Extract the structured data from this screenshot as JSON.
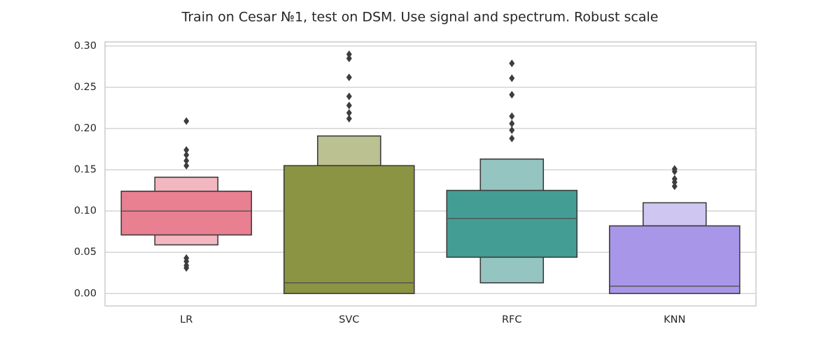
{
  "chart_data": {
    "type": "boxen",
    "title": "Train on Cesar №1, test on DSM. Use signal and spectrum. Robust scale",
    "xlabel": "",
    "ylabel": "",
    "categories": [
      "LR",
      "SVC",
      "RFC",
      "KNN"
    ],
    "y_ticks": [
      "0.00",
      "0.05",
      "0.10",
      "0.15",
      "0.20",
      "0.25",
      "0.30"
    ],
    "ylim": [
      -0.015,
      0.305
    ],
    "grid": "horizontal",
    "edge_color": "#3d3d3d",
    "outlier_color": "#3d3d3d",
    "series": [
      {
        "category": "LR",
        "median": 0.1,
        "boxes": [
          {
            "low": 0.071,
            "high": 0.124,
            "color": "#e88091"
          },
          {
            "low": 0.059,
            "high": 0.141,
            "color": "#f3b7c2"
          },
          {
            "low": 0.046,
            "high": 0.154,
            "color": "#fcebee"
          }
        ],
        "outliers": [
          0.209,
          0.174,
          0.168,
          0.161,
          0.155,
          0.043,
          0.039,
          0.034,
          0.031
        ]
      },
      {
        "category": "SVC",
        "median": 0.013,
        "boxes": [
          {
            "low": 0.0,
            "high": 0.155,
            "color": "#8a9442"
          },
          {
            "low": 0.155,
            "high": 0.191,
            "color": "#bbc190"
          },
          {
            "low": 0.191,
            "high": 0.211,
            "color": "#eaecdf"
          }
        ],
        "outliers": [
          0.29,
          0.285,
          0.262,
          0.239,
          0.228,
          0.219,
          0.212
        ]
      },
      {
        "category": "RFC",
        "median": 0.091,
        "boxes": [
          {
            "low": 0.044,
            "high": 0.125,
            "color": "#449d94"
          },
          {
            "low": 0.013,
            "high": 0.163,
            "color": "#95c5c1"
          },
          {
            "low": 0.0,
            "high": 0.186,
            "color": "#e2efef"
          }
        ],
        "outliers": [
          0.279,
          0.261,
          0.241,
          0.215,
          0.206,
          0.198,
          0.188
        ]
      },
      {
        "category": "KNN",
        "median": 0.009,
        "boxes": [
          {
            "low": 0.0,
            "high": 0.082,
            "color": "#a897e8"
          },
          {
            "low": 0.082,
            "high": 0.11,
            "color": "#cfc6f2"
          },
          {
            "low": 0.11,
            "high": 0.128,
            "color": "#eeebf9"
          }
        ],
        "outliers": [
          0.151,
          0.148,
          0.139,
          0.135,
          0.13
        ]
      }
    ]
  }
}
